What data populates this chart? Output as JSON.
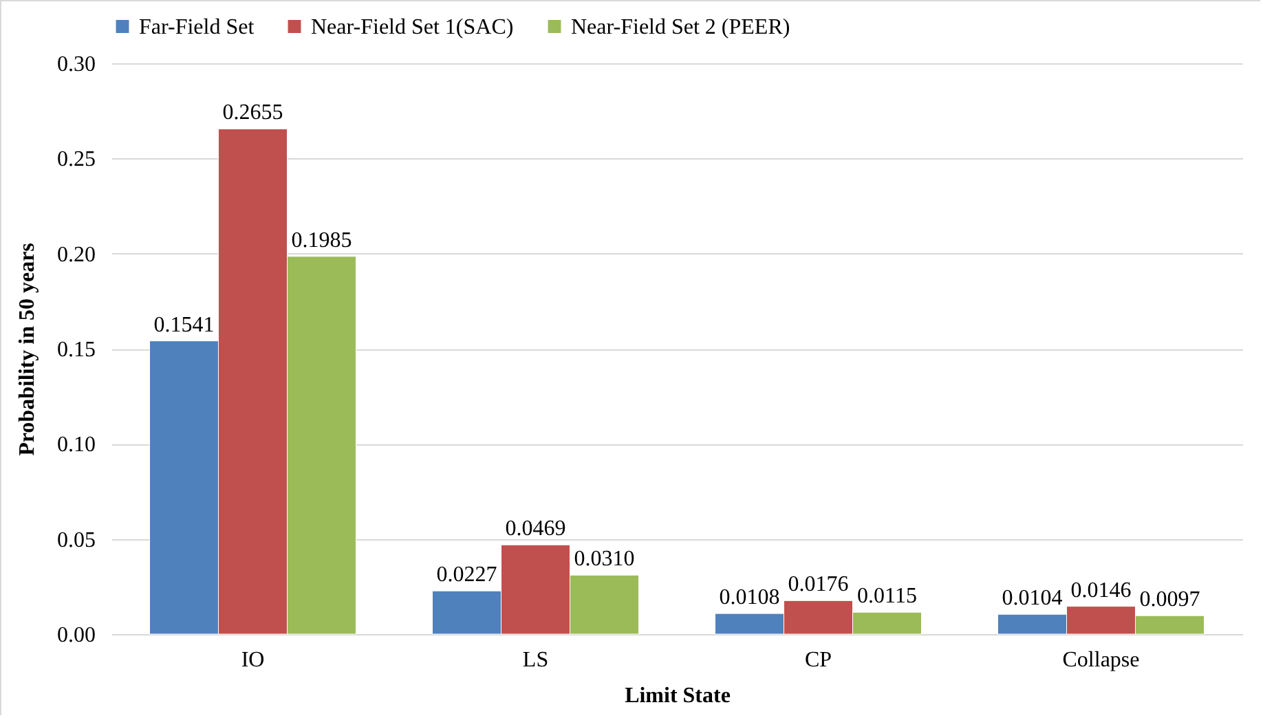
{
  "chart_data": {
    "type": "bar",
    "xlabel": "Limit State",
    "ylabel": "Probability in 50 years",
    "categories": [
      "IO",
      "LS",
      "CP",
      "Collapse"
    ],
    "series": [
      {
        "name": "Far-Field Set",
        "color": "#4f81bd",
        "values": [
          0.1541,
          0.0227,
          0.0108,
          0.0104
        ],
        "value_labels": [
          "0.1541",
          "0.0227",
          "0.0108",
          "0.0104"
        ]
      },
      {
        "name": "Near-Field Set 1(SAC)",
        "color": "#c0504d",
        "values": [
          0.2655,
          0.0469,
          0.0176,
          0.0146
        ],
        "value_labels": [
          "0.2655",
          "0.0469",
          "0.0176",
          "0.0146"
        ]
      },
      {
        "name": "Near-Field Set 2 (PEER)",
        "color": "#9bbb59",
        "values": [
          0.1985,
          0.031,
          0.0115,
          0.0097
        ],
        "value_labels": [
          "0.1985",
          "0.0310",
          "0.0115",
          "0.0097"
        ]
      }
    ],
    "ylim": [
      0,
      0.3
    ],
    "yticks": [
      {
        "value": 0,
        "label": "0.00"
      },
      {
        "value": 0.05,
        "label": "0.05"
      },
      {
        "value": 0.1,
        "label": "0.10"
      },
      {
        "value": 0.15,
        "label": "0.15"
      },
      {
        "value": 0.2,
        "label": "0.20"
      },
      {
        "value": 0.25,
        "label": "0.25"
      },
      {
        "value": 0.3,
        "label": "0.30"
      }
    ],
    "grid": "y",
    "legend": "top"
  }
}
